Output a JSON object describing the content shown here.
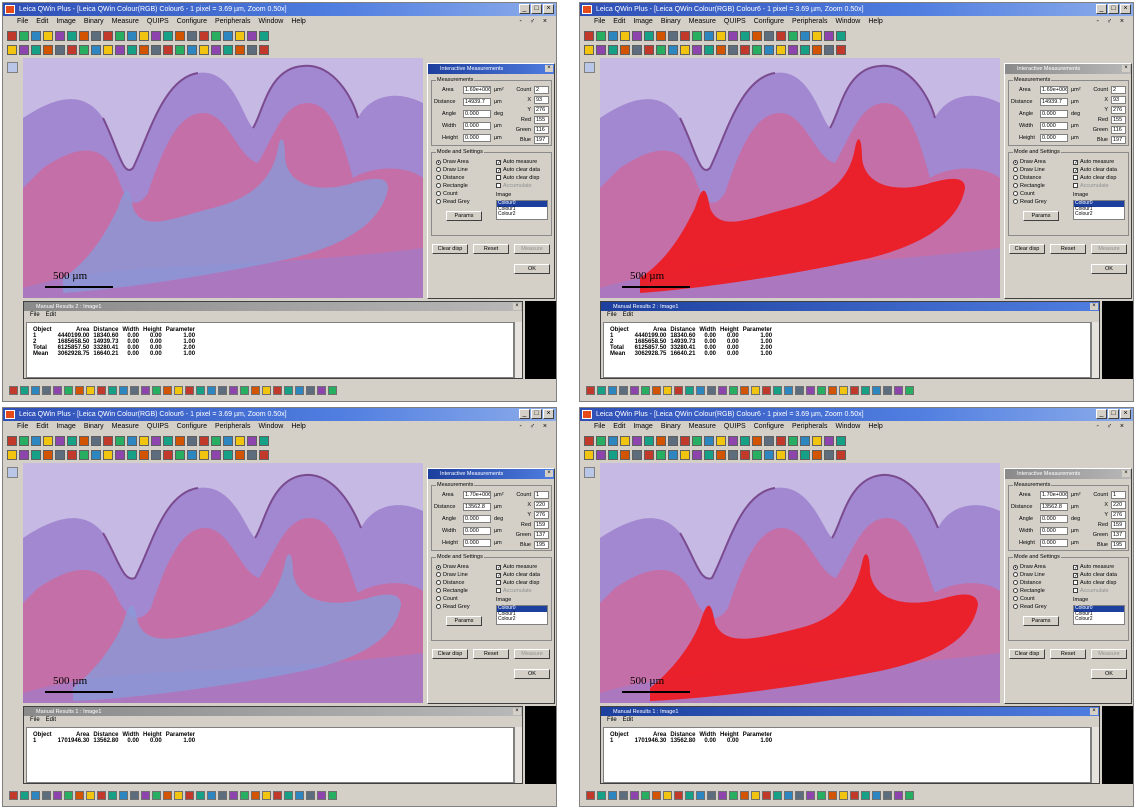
{
  "app": {
    "title": "Leica QWin Plus - [Leica QWin Colour(RGB) Colour6 - 1 pixel = 3.69 µm, Zoom 0.50x]",
    "menu": [
      "File",
      "Edit",
      "Image",
      "Binary",
      "Measure",
      "QUIPS",
      "Configure",
      "Peripherals",
      "Window",
      "Help"
    ],
    "mdi_controls": "- ♂ ×"
  },
  "colors": {
    "tissue_pink": "#c46fa8",
    "tissue_purple": "#9b7fce",
    "background_lavender": "#c6b9e3",
    "pulp_blue": "#8a9ad8",
    "highlight_red": "#ec1c24",
    "window_face": "#d4d0c8",
    "title_blue": "#2e4fb6"
  },
  "panels": [
    {
      "id": "top-left",
      "scale_label": "500 µm",
      "dialog_title": "Interactive Measurements",
      "dialog_active": true,
      "red_overlay": false,
      "variant": "a",
      "measurements": {
        "area_label": "Area",
        "area": "1.69e+006",
        "area_unit": "µm²",
        "distance_label": "Distance",
        "distance": "14939.7",
        "distance_unit": "µm",
        "angle_label": "Angle",
        "angle": "0.000",
        "angle_unit": "deg",
        "width_label": "Width",
        "width": "0.000",
        "width_unit": "µm",
        "height_label": "Height",
        "height": "0.000",
        "height_unit": "µm",
        "count_label": "Count",
        "count": "2",
        "x_label": "X",
        "x": "93",
        "y_label": "Y",
        "y": "276",
        "red_label": "Red",
        "red": "155",
        "green_label": "Green",
        "green": "116",
        "blue_label": "Blue",
        "blue": "197"
      },
      "results_title": "Manual Results 2 : Image1",
      "rows": [
        [
          "Object",
          "Area",
          "Distance",
          "Width",
          "Height",
          "Parameter"
        ],
        [
          "1",
          "4440199.00",
          "18340.60",
          "0.00",
          "0.00",
          "1.00"
        ],
        [
          "2",
          "1685658.50",
          "14939.73",
          "0.00",
          "0.00",
          "1.00"
        ],
        [
          "",
          "",
          "",
          "",
          "",
          ""
        ],
        [
          "Total",
          "6125857.50",
          "33280.41",
          "0.00",
          "0.00",
          "2.00"
        ],
        [
          "Mean",
          "3062928.75",
          "16640.21",
          "0.00",
          "0.00",
          "1.00"
        ]
      ]
    },
    {
      "id": "top-right",
      "scale_label": "500 µm",
      "dialog_title": "Interactive Measurements",
      "dialog_active": false,
      "red_overlay": true,
      "variant": "a",
      "measurements": {
        "area_label": "Area",
        "area": "1.69e+006",
        "area_unit": "µm²",
        "distance_label": "Distance",
        "distance": "14939.7",
        "distance_unit": "µm",
        "angle_label": "Angle",
        "angle": "0.000",
        "angle_unit": "deg",
        "width_label": "Width",
        "width": "0.000",
        "width_unit": "µm",
        "height_label": "Height",
        "height": "0.000",
        "height_unit": "µm",
        "count_label": "Count",
        "count": "2",
        "x_label": "X",
        "x": "93",
        "y_label": "Y",
        "y": "276",
        "red_label": "Red",
        "red": "155",
        "green_label": "Green",
        "green": "116",
        "blue_label": "Blue",
        "blue": "197"
      },
      "results_title": "Manual Results 2 : Image1",
      "rows": [
        [
          "Object",
          "Area",
          "Distance",
          "Width",
          "Height",
          "Parameter"
        ],
        [
          "1",
          "4440199.00",
          "18340.60",
          "0.00",
          "0.00",
          "1.00"
        ],
        [
          "2",
          "1685658.50",
          "14939.73",
          "0.00",
          "0.00",
          "1.00"
        ],
        [
          "",
          "",
          "",
          "",
          "",
          ""
        ],
        [
          "Total",
          "6125857.50",
          "33280.41",
          "0.00",
          "0.00",
          "2.00"
        ],
        [
          "Mean",
          "3062928.75",
          "16640.21",
          "0.00",
          "0.00",
          "1.00"
        ]
      ]
    },
    {
      "id": "bottom-left",
      "scale_label": "500 µm",
      "dialog_title": "Interactive Measurements",
      "dialog_active": true,
      "red_overlay": false,
      "variant": "b",
      "measurements": {
        "area_label": "Area",
        "area": "1.70e+006",
        "area_unit": "µm²",
        "distance_label": "Distance",
        "distance": "13562.8",
        "distance_unit": "µm",
        "angle_label": "Angle",
        "angle": "0.000",
        "angle_unit": "deg",
        "width_label": "Width",
        "width": "0.000",
        "width_unit": "µm",
        "height_label": "Height",
        "height": "0.000",
        "height_unit": "µm",
        "count_label": "Count",
        "count": "1",
        "x_label": "X",
        "x": "220",
        "y_label": "Y",
        "y": "276",
        "red_label": "Red",
        "red": "159",
        "green_label": "Green",
        "green": "137",
        "blue_label": "Blue",
        "blue": "195"
      },
      "results_title": "Manual Results 1 : Image1",
      "rows": [
        [
          "Object",
          "Area",
          "Distance",
          "Width",
          "Height",
          "Parameter"
        ],
        [
          "1",
          "1701946.30",
          "13562.80",
          "0.00",
          "0.00",
          "1.00"
        ]
      ]
    },
    {
      "id": "bottom-right",
      "scale_label": "500 µm",
      "dialog_title": "Interactive Measurements",
      "dialog_active": false,
      "red_overlay": true,
      "variant": "b",
      "measurements": {
        "area_label": "Area",
        "area": "1.70e+006",
        "area_unit": "µm²",
        "distance_label": "Distance",
        "distance": "13562.8",
        "distance_unit": "µm",
        "angle_label": "Angle",
        "angle": "0.000",
        "angle_unit": "deg",
        "width_label": "Width",
        "width": "0.000",
        "width_unit": "µm",
        "height_label": "Height",
        "height": "0.000",
        "height_unit": "µm",
        "count_label": "Count",
        "count": "1",
        "x_label": "X",
        "x": "220",
        "y_label": "Y",
        "y": "276",
        "red_label": "Red",
        "red": "159",
        "green_label": "Green",
        "green": "137",
        "blue_label": "Blue",
        "blue": "195"
      },
      "results_title": "Manual Results 1 : Image1",
      "rows": [
        [
          "Object",
          "Area",
          "Distance",
          "Width",
          "Height",
          "Parameter"
        ],
        [
          "1",
          "1701946.30",
          "13562.80",
          "0.00",
          "0.00",
          "1.00"
        ]
      ]
    }
  ],
  "dialog": {
    "measurements_group": "Measurements",
    "mode_group": "Mode and Settings",
    "modes": [
      "Draw Area",
      "Draw Line",
      "Distance",
      "Rectangle",
      "Count",
      "Read Grey"
    ],
    "selected_mode": "Draw Area",
    "options": [
      {
        "label": "Auto measure",
        "checked": true,
        "disabled": false
      },
      {
        "label": "Auto clear data",
        "checked": true,
        "disabled": false
      },
      {
        "label": "Auto clear disp",
        "checked": false,
        "disabled": false
      },
      {
        "label": "Accumulate",
        "checked": false,
        "disabled": true
      }
    ],
    "image_label": "Image",
    "image_options": [
      "Colour0",
      "Colour1",
      "Colour2"
    ],
    "params_button": "Params",
    "clear_disp_button": "Clear disp",
    "reset_button": "Reset",
    "measure_button": "Measure",
    "ok_button": "OK"
  },
  "results_menu": [
    "File",
    "Edit"
  ]
}
